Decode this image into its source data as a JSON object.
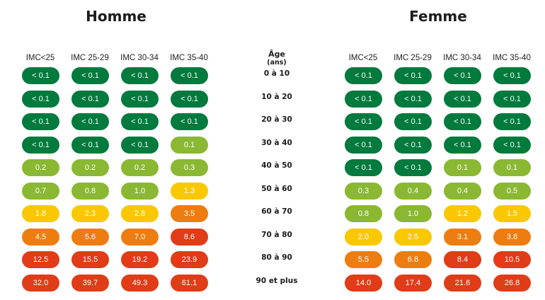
{
  "chart_data": {
    "type": "table",
    "colors": {
      "dark_green": "#007a3d",
      "light_green": "#8ab832",
      "yellow": "#f9c800",
      "orange": "#ed7d10",
      "red": "#e03c18"
    },
    "age_header": "Âge",
    "age_unit": "(ans)",
    "age_groups": [
      "0 à 10",
      "10 à 20",
      "20 à 30",
      "30 à 40",
      "40 à 50",
      "50 à 60",
      "60 à 70",
      "70 à 80",
      "80 à 90",
      "90 et plus"
    ],
    "columns": [
      "IMC<25",
      "IMC 25-29",
      "IMC 30-34",
      "IMC 35-40"
    ],
    "panels": [
      {
        "title": "Homme",
        "values": [
          [
            "< 0.1",
            "< 0.1",
            "< 0.1",
            "< 0.1"
          ],
          [
            "< 0.1",
            "< 0.1",
            "< 0.1",
            "< 0.1"
          ],
          [
            "< 0.1",
            "< 0.1",
            "< 0.1",
            "< 0.1"
          ],
          [
            "< 0.1",
            "< 0.1",
            "< 0.1",
            "0.1"
          ],
          [
            "0.2",
            "0.2",
            "0.2",
            "0.3"
          ],
          [
            "0.7",
            "0.8",
            "1.0",
            "1.3"
          ],
          [
            "1.8",
            "2.3",
            "2.8",
            "3.5"
          ],
          [
            "4.5",
            "5.6",
            "7.0",
            "8.6"
          ],
          [
            "12.5",
            "15.5",
            "19.2",
            "23.9"
          ],
          [
            "32.0",
            "39.7",
            "49.3",
            "61.1"
          ]
        ],
        "color_levels": [
          [
            "dark_green",
            "dark_green",
            "dark_green",
            "dark_green"
          ],
          [
            "dark_green",
            "dark_green",
            "dark_green",
            "dark_green"
          ],
          [
            "dark_green",
            "dark_green",
            "dark_green",
            "dark_green"
          ],
          [
            "dark_green",
            "dark_green",
            "dark_green",
            "light_green"
          ],
          [
            "light_green",
            "light_green",
            "light_green",
            "light_green"
          ],
          [
            "light_green",
            "light_green",
            "light_green",
            "yellow"
          ],
          [
            "yellow",
            "yellow",
            "yellow",
            "orange"
          ],
          [
            "orange",
            "orange",
            "orange",
            "red"
          ],
          [
            "red",
            "red",
            "red",
            "red"
          ],
          [
            "red",
            "red",
            "red",
            "red"
          ]
        ]
      },
      {
        "title": "Femme",
        "values": [
          [
            "< 0.1",
            "< 0.1",
            "< 0.1",
            "< 0.1"
          ],
          [
            "< 0.1",
            "< 0.1",
            "< 0.1",
            "< 0.1"
          ],
          [
            "< 0.1",
            "< 0.1",
            "< 0.1",
            "< 0.1"
          ],
          [
            "< 0.1",
            "< 0.1",
            "< 0.1",
            "< 0.1"
          ],
          [
            "< 0.1",
            "< 0.1",
            "0.1",
            "0.1"
          ],
          [
            "0.3",
            "0.4",
            "0.4",
            "0.5"
          ],
          [
            "0.8",
            "1.0",
            "1.2",
            "1.5"
          ],
          [
            "2.0",
            "2.5",
            "3.1",
            "3.8"
          ],
          [
            "5.5",
            "6.8",
            "8.4",
            "10.5"
          ],
          [
            "14.0",
            "17.4",
            "21.6",
            "26.8"
          ]
        ],
        "color_levels": [
          [
            "dark_green",
            "dark_green",
            "dark_green",
            "dark_green"
          ],
          [
            "dark_green",
            "dark_green",
            "dark_green",
            "dark_green"
          ],
          [
            "dark_green",
            "dark_green",
            "dark_green",
            "dark_green"
          ],
          [
            "dark_green",
            "dark_green",
            "dark_green",
            "dark_green"
          ],
          [
            "dark_green",
            "dark_green",
            "light_green",
            "light_green"
          ],
          [
            "light_green",
            "light_green",
            "light_green",
            "light_green"
          ],
          [
            "light_green",
            "light_green",
            "yellow",
            "yellow"
          ],
          [
            "yellow",
            "yellow",
            "orange",
            "orange"
          ],
          [
            "orange",
            "orange",
            "red",
            "red"
          ],
          [
            "red",
            "red",
            "red",
            "red"
          ]
        ]
      }
    ]
  }
}
